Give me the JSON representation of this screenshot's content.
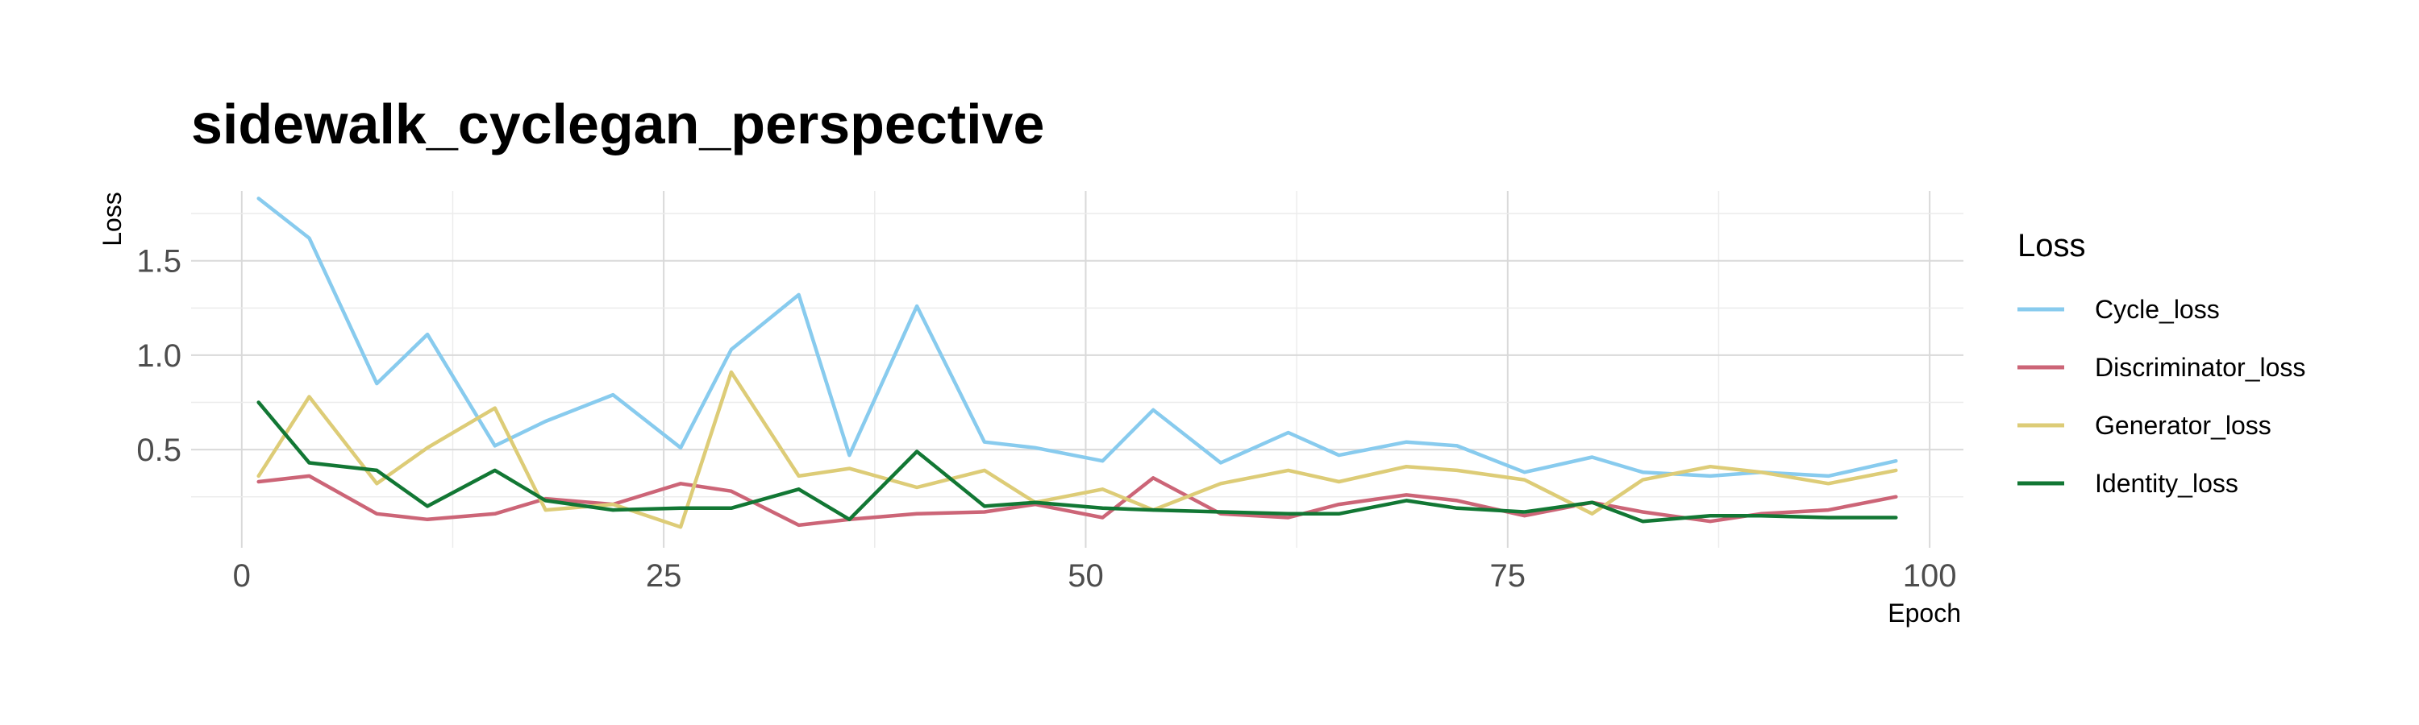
{
  "chart_data": {
    "type": "line",
    "title": "sidewalk_cyclegan_perspective",
    "xlabel": "Epoch",
    "ylabel": "Loss",
    "xlim": [
      -3,
      102
    ],
    "ylim": [
      -0.02,
      1.87
    ],
    "x_ticks": [
      0,
      25,
      50,
      75,
      100
    ],
    "x_tick_labels": [
      "0",
      "25",
      "50",
      "75",
      "100"
    ],
    "y_ticks": [
      0.5,
      1.0,
      1.5
    ],
    "y_tick_labels": [
      "0.5",
      "1.0",
      "1.5"
    ],
    "grid": true,
    "legend_title": "Loss",
    "legend_position": "right",
    "x": [
      1,
      4,
      8,
      11,
      15,
      18,
      22,
      26,
      29,
      33,
      36,
      40,
      44,
      47,
      51,
      54,
      58,
      62,
      65,
      69,
      72,
      76,
      80,
      83,
      87,
      90,
      94,
      98
    ],
    "series": [
      {
        "name": "Cycle_loss",
        "color": "#88cbee",
        "values": [
          1.83,
          1.62,
          0.85,
          1.11,
          0.52,
          0.65,
          0.79,
          0.51,
          1.03,
          1.32,
          0.47,
          1.26,
          0.54,
          0.51,
          0.44,
          0.71,
          0.43,
          0.59,
          0.47,
          0.54,
          0.52,
          0.38,
          0.46,
          0.38,
          0.36,
          0.38,
          0.36,
          0.44
        ]
      },
      {
        "name": "Discriminator_loss",
        "color": "#cc6577",
        "values": [
          0.33,
          0.36,
          0.16,
          0.13,
          0.16,
          0.24,
          0.21,
          0.32,
          0.28,
          0.1,
          0.13,
          0.16,
          0.17,
          0.21,
          0.14,
          0.35,
          0.16,
          0.14,
          0.21,
          0.26,
          0.23,
          0.15,
          0.22,
          0.17,
          0.12,
          0.16,
          0.18,
          0.25
        ]
      },
      {
        "name": "Generator_loss",
        "color": "#ddcc77",
        "values": [
          0.36,
          0.78,
          0.32,
          0.51,
          0.72,
          0.18,
          0.21,
          0.09,
          0.91,
          0.36,
          0.4,
          0.3,
          0.39,
          0.22,
          0.29,
          0.18,
          0.32,
          0.39,
          0.33,
          0.41,
          0.39,
          0.34,
          0.16,
          0.34,
          0.41,
          0.38,
          0.32,
          0.39
        ]
      },
      {
        "name": "Identity_loss",
        "color": "#127734",
        "values": [
          0.75,
          0.43,
          0.39,
          0.2,
          0.39,
          0.23,
          0.18,
          0.19,
          0.19,
          0.29,
          0.13,
          0.49,
          0.2,
          0.22,
          0.19,
          0.18,
          0.17,
          0.16,
          0.16,
          0.23,
          0.19,
          0.17,
          0.22,
          0.12,
          0.15,
          0.15,
          0.14,
          0.14
        ]
      }
    ]
  }
}
